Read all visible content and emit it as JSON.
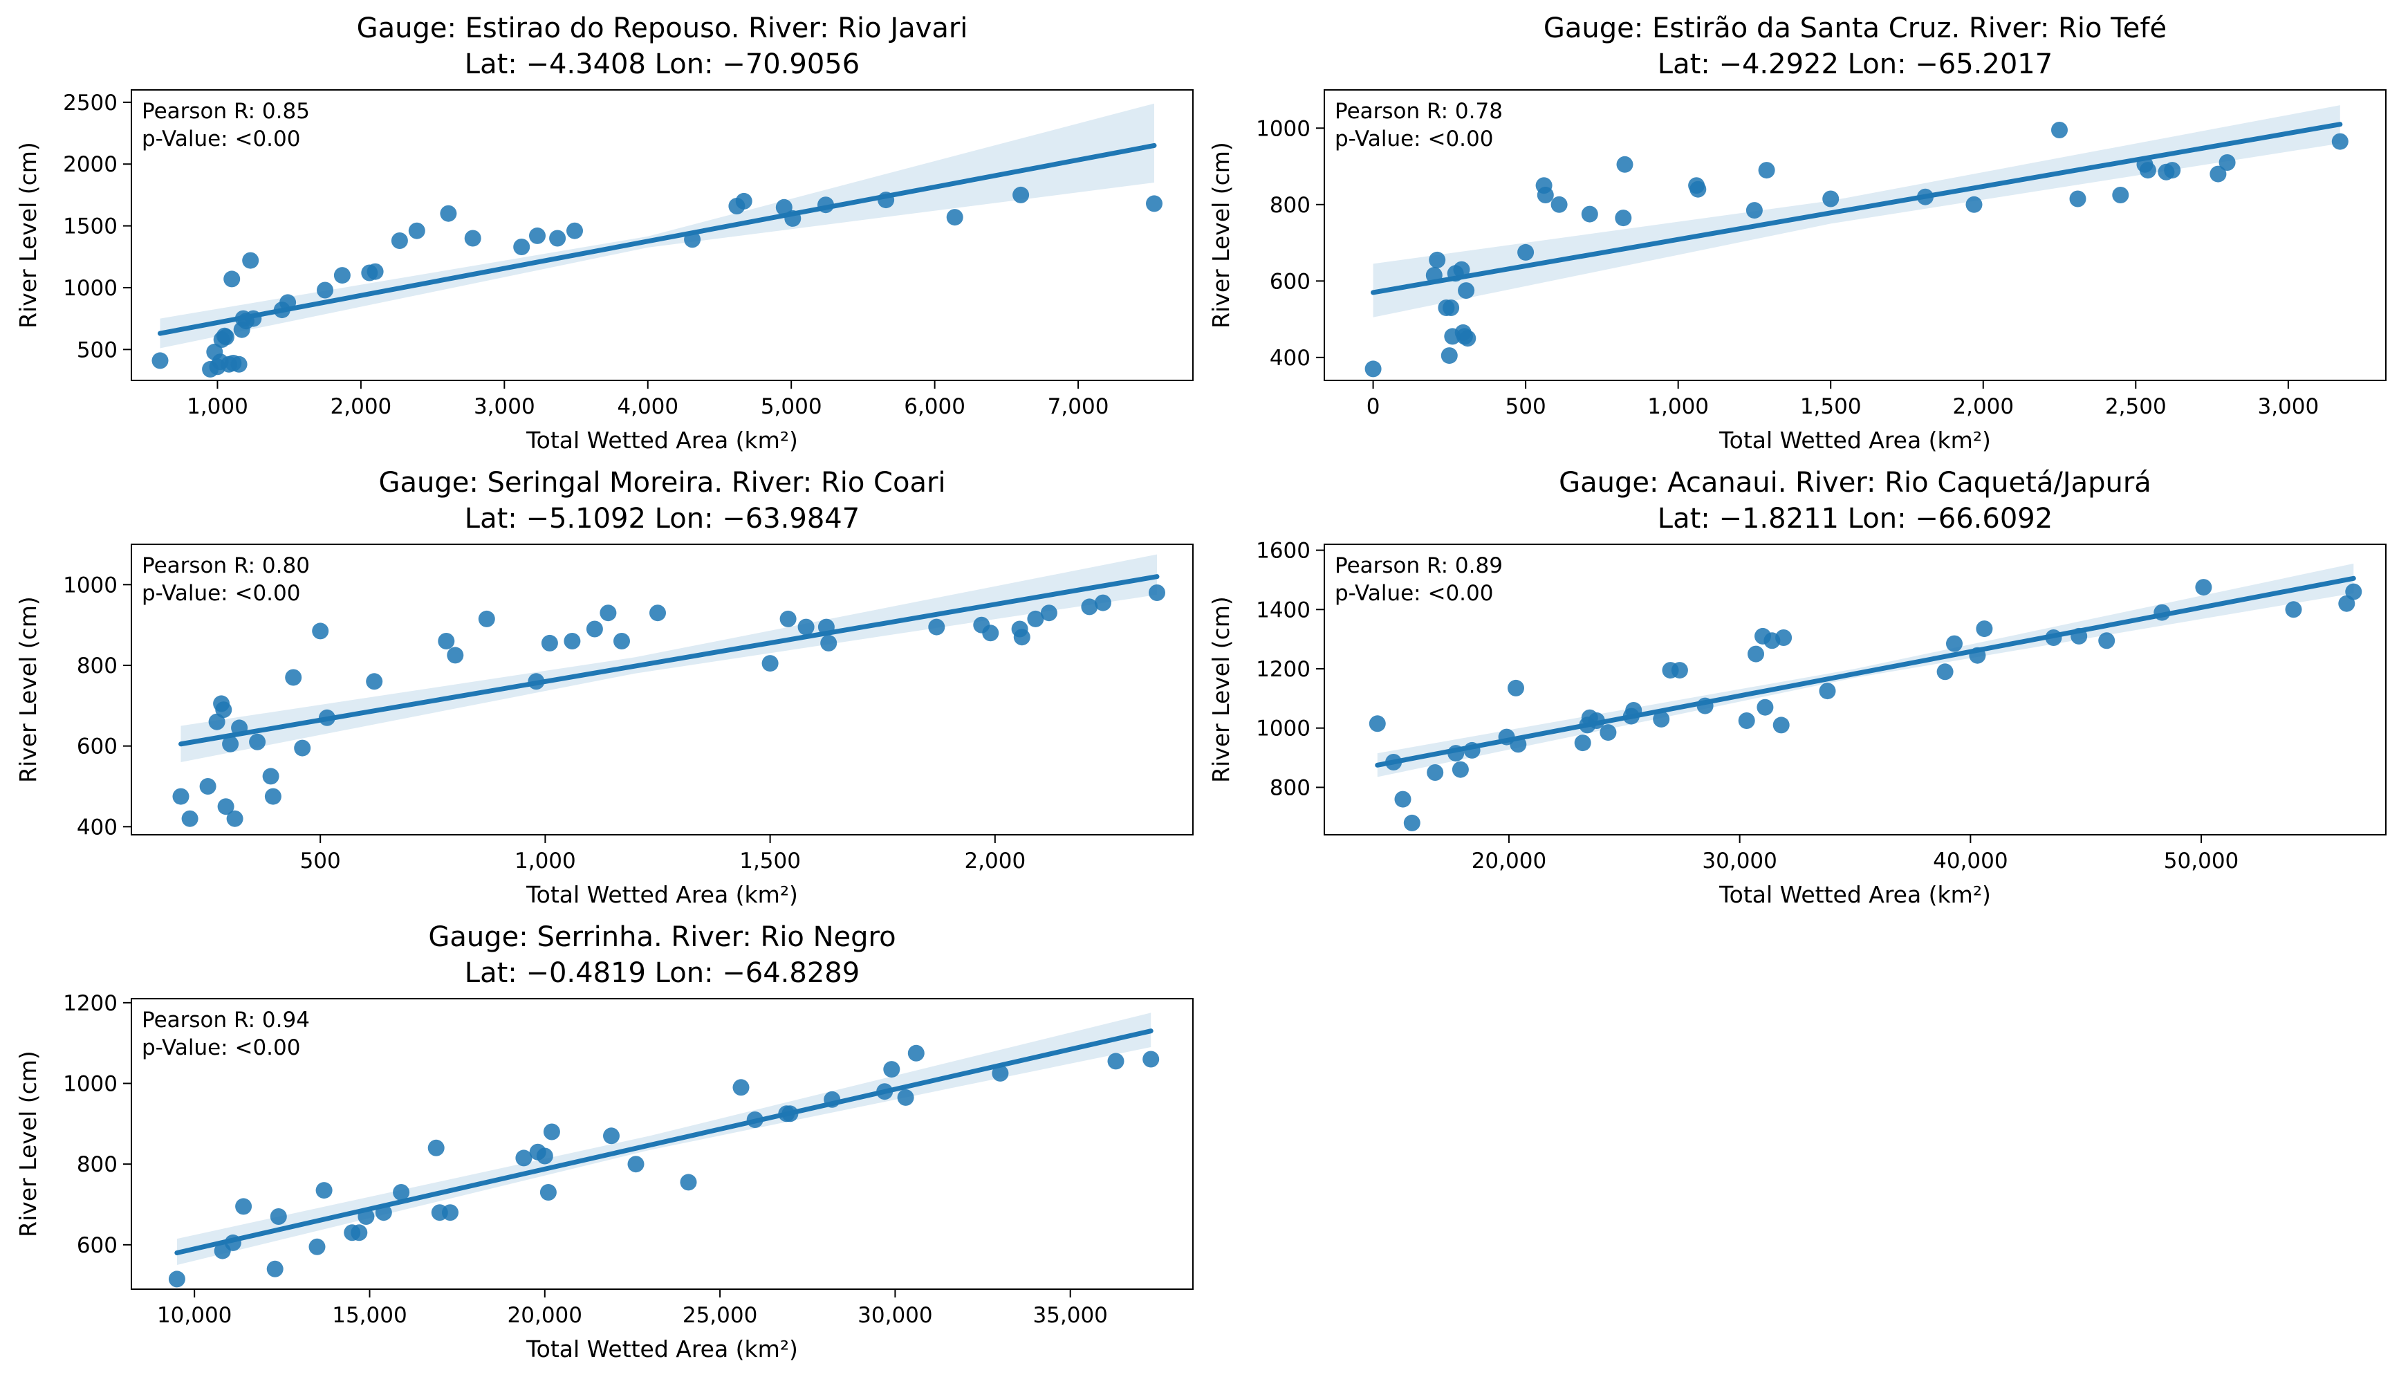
{
  "chart_data": [
    {
      "type": "scatter",
      "title": "Gauge: Estirao do Repouso. River: Rio Javari",
      "subtitle": "Lat: −4.3408 Lon: −70.9056",
      "xlabel": "Total Wetted Area (km²)",
      "ylabel": "River Level (cm)",
      "annotation": [
        "Pearson R: 0.85",
        "p-Value: <0.00"
      ],
      "xlim": [
        400,
        7800
      ],
      "ylim": [
        250,
        2600
      ],
      "xticks": [
        1000,
        2000,
        3000,
        4000,
        5000,
        6000,
        7000
      ],
      "xtick_labels": [
        "1,000",
        "2,000",
        "3,000",
        "4,000",
        "5,000",
        "6,000",
        "7,000"
      ],
      "yticks": [
        500,
        1000,
        1500,
        2000,
        2500
      ],
      "ytick_labels": [
        "500",
        "1000",
        "1500",
        "2000",
        "2500"
      ],
      "x": [
        600,
        950,
        980,
        1000,
        1020,
        1030,
        1050,
        1060,
        1080,
        1100,
        1110,
        1150,
        1170,
        1180,
        1200,
        1230,
        1250,
        1450,
        1490,
        1750,
        1870,
        2060,
        2100,
        2270,
        2390,
        2610,
        2780,
        3120,
        3230,
        3370,
        3490,
        4310,
        4620,
        4670,
        4950,
        5010,
        5240,
        5660,
        6140,
        6600,
        7530
      ],
      "y": [
        410,
        340,
        480,
        360,
        400,
        580,
        610,
        600,
        380,
        1070,
        390,
        380,
        660,
        750,
        730,
        1220,
        750,
        820,
        880,
        980,
        1100,
        1120,
        1130,
        1380,
        1460,
        1600,
        1400,
        1330,
        1420,
        1400,
        1460,
        1390,
        1660,
        1700,
        1650,
        1560,
        1670,
        1710,
        1570,
        1750,
        1680
      ],
      "fit": {
        "x": [
          600,
          7530
        ],
        "y": [
          630,
          2150
        ]
      },
      "ci": {
        "x": [
          600,
          4000,
          7530
        ],
        "lower": [
          510,
          1325,
          1850
        ],
        "upper": [
          750,
          1415,
          2490
        ]
      }
    },
    {
      "type": "scatter",
      "title": "Gauge: Estirão da Santa Cruz. River: Rio Tefé",
      "subtitle": "Lat: −4.2922 Lon: −65.2017",
      "xlabel": "Total Wetted Area (km²)",
      "ylabel": "River Level (cm)",
      "annotation": [
        "Pearson R: 0.78",
        "p-Value: <0.00"
      ],
      "xlim": [
        -160,
        3320
      ],
      "ylim": [
        340,
        1100
      ],
      "xticks": [
        0,
        500,
        1000,
        1500,
        2000,
        2500,
        3000
      ],
      "xtick_labels": [
        "0",
        "500",
        "1,000",
        "1,500",
        "2,000",
        "2,500",
        "3,000"
      ],
      "yticks": [
        400,
        600,
        800,
        1000
      ],
      "ytick_labels": [
        "400",
        "600",
        "800",
        "1000"
      ],
      "x": [
        0,
        200,
        210,
        240,
        250,
        255,
        260,
        270,
        290,
        295,
        300,
        305,
        310,
        500,
        560,
        565,
        610,
        710,
        820,
        825,
        1060,
        1065,
        1250,
        1290,
        1500,
        1810,
        1970,
        2250,
        2310,
        2450,
        2530,
        2540,
        2600,
        2620,
        2770,
        2800,
        3170
      ],
      "y": [
        370,
        615,
        655,
        530,
        405,
        530,
        455,
        620,
        630,
        465,
        455,
        575,
        450,
        675,
        850,
        825,
        800,
        775,
        765,
        905,
        850,
        840,
        785,
        890,
        815,
        820,
        800,
        995,
        815,
        825,
        905,
        890,
        885,
        890,
        880,
        910,
        965
      ],
      "fit": {
        "x": [
          0,
          3170
        ],
        "y": [
          570,
          1010
        ]
      },
      "ci": {
        "x": [
          0,
          1500,
          3170
        ],
        "lower": [
          505,
          750,
          960
        ],
        "upper": [
          645,
          810,
          1060
        ]
      }
    },
    {
      "type": "scatter",
      "title": "Gauge: Seringal Moreira. River: Rio Coari",
      "subtitle": "Lat: −5.1092 Lon: −63.9847",
      "xlabel": "Total Wetted Area (km²)",
      "ylabel": "River Level (cm)",
      "annotation": [
        "Pearson R: 0.80",
        "p-Value: <0.00"
      ],
      "xlim": [
        80,
        2440
      ],
      "ylim": [
        380,
        1100
      ],
      "xticks": [
        500,
        1000,
        1500,
        2000
      ],
      "xtick_labels": [
        "500",
        "1,000",
        "1,500",
        "2,000"
      ],
      "yticks": [
        400,
        600,
        800,
        1000
      ],
      "ytick_labels": [
        "400",
        "600",
        "800",
        "1000"
      ],
      "x": [
        190,
        210,
        250,
        270,
        280,
        285,
        290,
        300,
        310,
        320,
        360,
        390,
        395,
        440,
        460,
        500,
        515,
        620,
        780,
        800,
        870,
        980,
        1010,
        1060,
        1110,
        1140,
        1170,
        1250,
        1500,
        1540,
        1580,
        1630,
        1625,
        1870,
        1970,
        1990,
        2060,
        2055,
        2090,
        2120,
        2210,
        2240,
        2360
      ],
      "y": [
        475,
        420,
        500,
        660,
        705,
        690,
        450,
        605,
        420,
        645,
        610,
        525,
        475,
        770,
        595,
        885,
        670,
        760,
        860,
        825,
        915,
        760,
        855,
        860,
        890,
        930,
        860,
        930,
        805,
        915,
        895,
        855,
        895,
        895,
        900,
        880,
        870,
        890,
        915,
        930,
        945,
        955,
        980
      ],
      "fit": {
        "x": [
          190,
          2360
        ],
        "y": [
          605,
          1020
        ]
      },
      "ci": {
        "x": [
          190,
          1200,
          2360
        ],
        "lower": [
          560,
          780,
          975
        ],
        "upper": [
          650,
          820,
          1075
        ]
      }
    },
    {
      "type": "scatter",
      "title": "Gauge: Acanaui. River: Rio Caquetá/Japurá",
      "subtitle": "Lat: −1.8211 Lon: −66.6092",
      "xlabel": "Total Wetted Area (km²)",
      "ylabel": "River Level (cm)",
      "annotation": [
        "Pearson R: 0.89",
        "p-Value: <0.00"
      ],
      "xlim": [
        12000,
        58000
      ],
      "ylim": [
        640,
        1620
      ],
      "xticks": [
        20000,
        30000,
        40000,
        50000
      ],
      "xtick_labels": [
        "20,000",
        "30,000",
        "40,000",
        "50,000"
      ],
      "yticks": [
        800,
        1000,
        1200,
        1400,
        1600
      ],
      "ytick_labels": [
        "800",
        "1000",
        "1200",
        "1400",
        "1600"
      ],
      "x": [
        14300,
        15000,
        15400,
        15800,
        16800,
        17700,
        17900,
        18400,
        19900,
        20400,
        20300,
        23200,
        23400,
        23500,
        23800,
        24300,
        25300,
        25400,
        26600,
        27000,
        27400,
        28500,
        30300,
        30700,
        31000,
        31100,
        31400,
        31800,
        31900,
        33800,
        38900,
        39300,
        40300,
        40600,
        43600,
        44700,
        45900,
        48300,
        50100,
        54000,
        56300,
        56600
      ],
      "y": [
        1015,
        885,
        760,
        680,
        850,
        915,
        860,
        925,
        970,
        945,
        1135,
        950,
        1010,
        1035,
        1025,
        985,
        1040,
        1060,
        1030,
        1195,
        1195,
        1075,
        1025,
        1250,
        1310,
        1070,
        1295,
        1010,
        1305,
        1125,
        1190,
        1285,
        1245,
        1335,
        1305,
        1310,
        1295,
        1390,
        1475,
        1400,
        1420,
        1460
      ],
      "fit": {
        "x": [
          14300,
          56600
        ],
        "y": [
          875,
          1505
        ]
      },
      "ci": {
        "x": [
          14300,
          35000,
          56600
        ],
        "lower": [
          835,
          1170,
          1455
        ],
        "upper": [
          915,
          1200,
          1555
        ]
      }
    },
    {
      "type": "scatter",
      "title": "Gauge: Serrinha. River: Rio Negro",
      "subtitle": "Lat: −0.4819 Lon: −64.8289",
      "xlabel": "Total Wetted Area (km²)",
      "ylabel": "River Level (cm)",
      "annotation": [
        "Pearson R: 0.94",
        "p-Value: <0.00"
      ],
      "xlim": [
        8200,
        38500
      ],
      "ylim": [
        490,
        1210
      ],
      "xticks": [
        10000,
        15000,
        20000,
        25000,
        30000,
        35000
      ],
      "xtick_labels": [
        "10,000",
        "15,000",
        "20,000",
        "25,000",
        "30,000",
        "35,000"
      ],
      "yticks": [
        600,
        800,
        1000,
        1200
      ],
      "ytick_labels": [
        "600",
        "800",
        "1000",
        "1200"
      ],
      "x": [
        9500,
        10800,
        11100,
        11400,
        12300,
        12400,
        13500,
        13700,
        14500,
        14700,
        14900,
        15400,
        15900,
        16900,
        17000,
        17300,
        19400,
        19800,
        20000,
        20100,
        20200,
        21900,
        22600,
        24100,
        25600,
        26000,
        26900,
        27000,
        28200,
        29700,
        29900,
        30300,
        30600,
        33000,
        36300,
        37300
      ],
      "y": [
        515,
        585,
        605,
        695,
        540,
        670,
        595,
        735,
        630,
        630,
        670,
        680,
        730,
        840,
        680,
        680,
        815,
        830,
        820,
        730,
        880,
        870,
        800,
        755,
        990,
        910,
        925,
        925,
        960,
        980,
        1035,
        965,
        1075,
        1025,
        1055,
        1060
      ],
      "fit": {
        "x": [
          9500,
          37300
        ],
        "y": [
          580,
          1130
        ]
      },
      "ci": {
        "x": [
          9500,
          23000,
          37300
        ],
        "lower": [
          550,
          835,
          1090
        ],
        "upper": [
          615,
          870,
          1175
        ]
      }
    }
  ]
}
